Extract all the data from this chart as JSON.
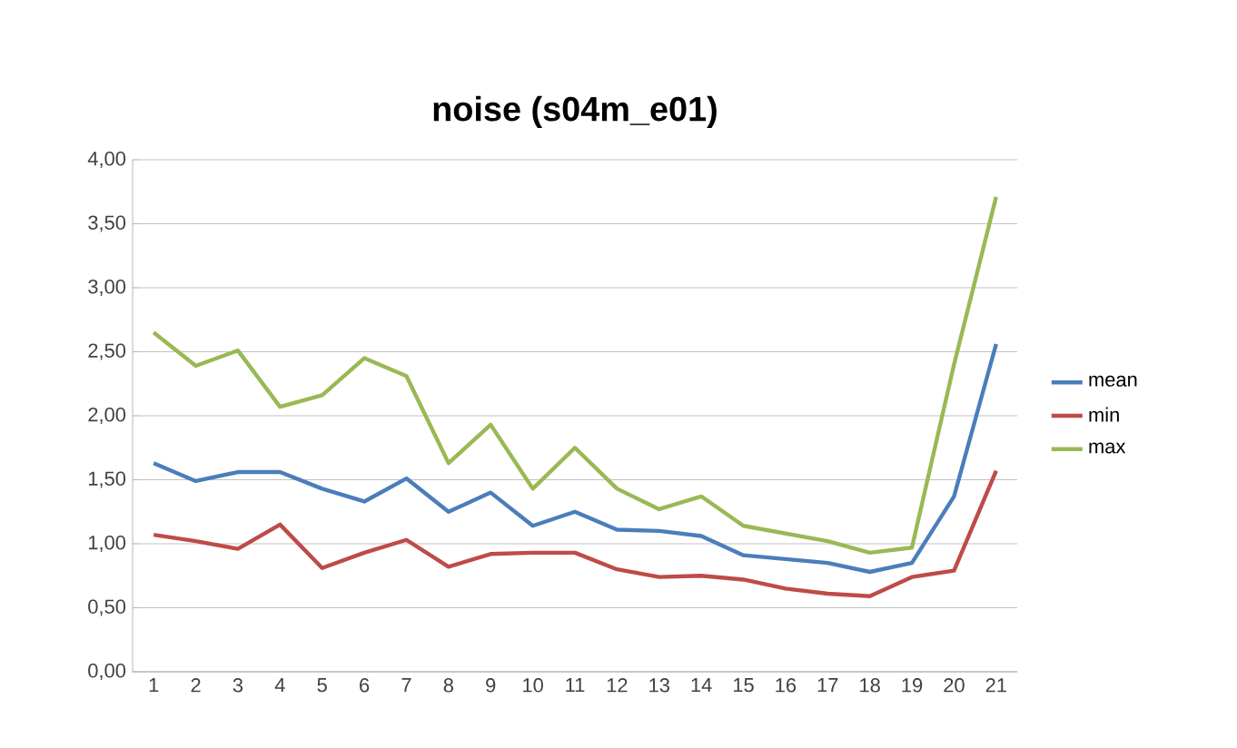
{
  "chart_data": {
    "type": "line",
    "title": "noise (s04m_e01)",
    "categories": [
      "1",
      "2",
      "3",
      "4",
      "5",
      "6",
      "7",
      "8",
      "9",
      "10",
      "11",
      "12",
      "13",
      "14",
      "15",
      "16",
      "17",
      "18",
      "19",
      "20",
      "21"
    ],
    "series": [
      {
        "name": "mean",
        "color": "#4a7ebb",
        "values": [
          1.63,
          1.49,
          1.56,
          1.56,
          1.43,
          1.33,
          1.51,
          1.25,
          1.4,
          1.14,
          1.25,
          1.11,
          1.1,
          1.06,
          0.91,
          0.88,
          0.85,
          0.78,
          0.85,
          1.37,
          2.56
        ]
      },
      {
        "name": "min",
        "color": "#be4b48",
        "values": [
          1.07,
          1.02,
          0.96,
          1.15,
          0.81,
          0.93,
          1.03,
          0.82,
          0.92,
          0.93,
          0.93,
          0.8,
          0.74,
          0.75,
          0.72,
          0.65,
          0.61,
          0.59,
          0.74,
          0.79,
          1.57
        ]
      },
      {
        "name": "max",
        "color": "#98b954",
        "values": [
          2.65,
          2.39,
          2.51,
          2.07,
          2.16,
          2.45,
          2.31,
          1.63,
          1.93,
          1.43,
          1.75,
          1.43,
          1.27,
          1.37,
          1.14,
          1.08,
          1.02,
          0.93,
          0.97,
          2.4,
          3.71
        ]
      }
    ],
    "ylim": [
      0,
      4
    ],
    "yticks": [
      {
        "value": 0,
        "label": "0,00"
      },
      {
        "value": 0.5,
        "label": "0,50"
      },
      {
        "value": 1,
        "label": "1,00"
      },
      {
        "value": 1.5,
        "label": "1,50"
      },
      {
        "value": 2,
        "label": "2,00"
      },
      {
        "value": 2.5,
        "label": "2,50"
      },
      {
        "value": 3,
        "label": "3,00"
      },
      {
        "value": 3.5,
        "label": "3,50"
      },
      {
        "value": 4,
        "label": "4,00"
      }
    ],
    "grid": "y",
    "legend": "right",
    "marker": "none",
    "line_style": "solid"
  }
}
